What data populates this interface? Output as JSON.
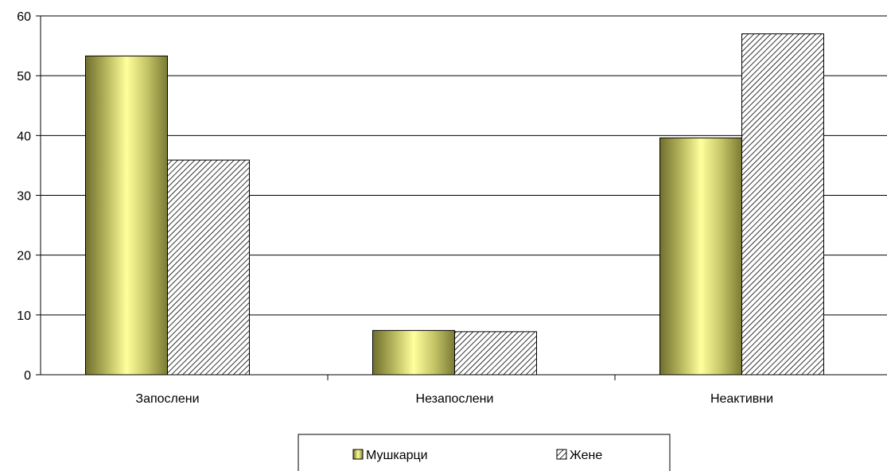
{
  "chart_data": {
    "type": "bar",
    "categories": [
      "Запослени",
      "Незапослени",
      "Неактивни"
    ],
    "series": [
      {
        "name": "Мушкарци",
        "values": [
          53.3,
          7.4,
          39.6
        ],
        "fill": "gradient-olive-yellow"
      },
      {
        "name": "Жене",
        "values": [
          35.9,
          7.2,
          57.0
        ],
        "fill": "diagonal-hatch"
      }
    ],
    "ylim": [
      0,
      60
    ],
    "yticks": [
      0,
      10,
      20,
      30,
      40,
      50,
      60
    ],
    "grid": true,
    "legend": "bottom-center",
    "colors": {
      "olive_dark": "#707030",
      "olive_light": "#ffff99",
      "hatch": "#000000"
    }
  }
}
